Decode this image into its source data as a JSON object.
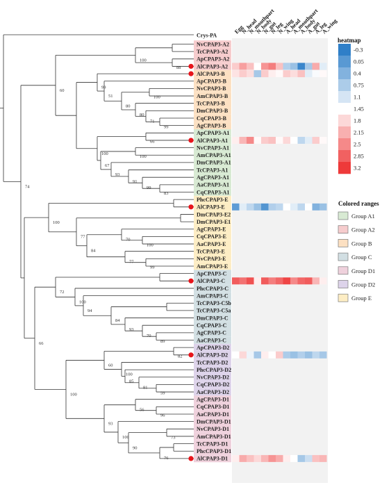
{
  "outgroup_label": "Crys-PA",
  "taxa": [
    {
      "label": "NvCPAP3-A2",
      "group": "A2",
      "dot": false
    },
    {
      "label": "TcCPAP3-A2",
      "group": "A2",
      "dot": false
    },
    {
      "label": "ApCPAP3-A2",
      "group": "A2",
      "dot": false
    },
    {
      "label": "AlCPAP3-A2",
      "group": "A2",
      "dot": true
    },
    {
      "label": "AlCPAP3-B",
      "group": "B",
      "dot": true
    },
    {
      "label": "ApCPAP3-B",
      "group": "B",
      "dot": false
    },
    {
      "label": "NvCPAP3-B",
      "group": "B",
      "dot": false
    },
    {
      "label": "AmCPAP3-B",
      "group": "B",
      "dot": false
    },
    {
      "label": "TcCPAP3-B",
      "group": "B",
      "dot": false
    },
    {
      "label": "DmCPAP3-B",
      "group": "B",
      "dot": false
    },
    {
      "label": "CqCPAP3-B",
      "group": "B",
      "dot": false
    },
    {
      "label": "AgCPAP3-B",
      "group": "B",
      "dot": false
    },
    {
      "label": "ApCPAP3-A1",
      "group": "A1",
      "dot": false
    },
    {
      "label": "AlCPAP3-A1",
      "group": "A1",
      "dot": true
    },
    {
      "label": "NvCPAP3-A1",
      "group": "A1",
      "dot": false
    },
    {
      "label": "AmCPAP3-A1",
      "group": "A1",
      "dot": false
    },
    {
      "label": "DmCPAP3-A1",
      "group": "A1",
      "dot": false
    },
    {
      "label": "TcCPAP3-A1",
      "group": "A1",
      "dot": false
    },
    {
      "label": "AgCPAP3-A1",
      "group": "A1",
      "dot": false
    },
    {
      "label": "AaCPAP3-A1",
      "group": "A1",
      "dot": false
    },
    {
      "label": "CqCPAP3-A1",
      "group": "A1",
      "dot": false
    },
    {
      "label": "PhcCPAP3-E",
      "group": "E",
      "dot": false
    },
    {
      "label": "AlCPAP3-E",
      "group": "E",
      "dot": true
    },
    {
      "label": "DmCPAP3-E2",
      "group": "E",
      "dot": false
    },
    {
      "label": "DmCPAP3-E1",
      "group": "E",
      "dot": false
    },
    {
      "label": "AgCPAP3-E",
      "group": "E",
      "dot": false
    },
    {
      "label": "CqCPAP3-E",
      "group": "E",
      "dot": false
    },
    {
      "label": "AaCPAP3-E",
      "group": "E",
      "dot": false
    },
    {
      "label": "TcCPAP3-E",
      "group": "E",
      "dot": false
    },
    {
      "label": "NvCPAP3-E",
      "group": "E",
      "dot": false
    },
    {
      "label": "AmCPAP3-E",
      "group": "E",
      "dot": false
    },
    {
      "label": "ApCPAP3-C",
      "group": "C",
      "dot": false
    },
    {
      "label": "AlCPAP3-C",
      "group": "C",
      "dot": true
    },
    {
      "label": "PhcCPAP3-C",
      "group": "C",
      "dot": false
    },
    {
      "label": "AmCPAP3-C",
      "group": "C",
      "dot": false
    },
    {
      "label": "TcCPAP3-C5b",
      "group": "C",
      "dot": false
    },
    {
      "label": "TcCPAP3-C5a",
      "group": "C",
      "dot": false
    },
    {
      "label": "DmCPAP3-C",
      "group": "C",
      "dot": false
    },
    {
      "label": "CqCPAP3-C",
      "group": "C",
      "dot": false
    },
    {
      "label": "AgCPAP3-C",
      "group": "C",
      "dot": false
    },
    {
      "label": "AaCPAP3-C",
      "group": "C",
      "dot": false
    },
    {
      "label": "ApCPAP3-D2",
      "group": "D2",
      "dot": false
    },
    {
      "label": "AlCPAP3-D2",
      "group": "D2",
      "dot": true
    },
    {
      "label": "TcCPAP3-D2",
      "group": "D2",
      "dot": false
    },
    {
      "label": "PhcCPAP3-D2",
      "group": "D2",
      "dot": false
    },
    {
      "label": "NvCPAP3-D2",
      "group": "D2",
      "dot": false
    },
    {
      "label": "CqCPAP3-D2",
      "group": "D2",
      "dot": false
    },
    {
      "label": "AaCPAP3-D2",
      "group": "D2",
      "dot": false
    },
    {
      "label": "AgCPAP3-D1",
      "group": "D1",
      "dot": false
    },
    {
      "label": "CqCPAP3-D1",
      "group": "D1",
      "dot": false
    },
    {
      "label": "AaCPAP3-D1",
      "group": "D1",
      "dot": false
    },
    {
      "label": "DmCPAP3-D1",
      "group": "D1",
      "dot": false
    },
    {
      "label": "NvCPAP3-D1",
      "group": "D1",
      "dot": false
    },
    {
      "label": "AmCPAP3-D1",
      "group": "D1",
      "dot": false
    },
    {
      "label": "TcCPAP3-D1",
      "group": "D1",
      "dot": false
    },
    {
      "label": "PhcCPAP3-D1",
      "group": "D1",
      "dot": false
    },
    {
      "label": "AlCPAP3-D1",
      "group": "D1",
      "dot": true
    }
  ],
  "bootstrap_values": [
    "100",
    "88",
    "60",
    "99",
    "51",
    "100",
    "80",
    "80",
    "71",
    "99",
    "66",
    "100",
    "100",
    "67",
    "93",
    "91",
    "99",
    "83",
    "100",
    "77",
    "84",
    "70",
    "100",
    "99",
    "77",
    "74",
    "72",
    "100",
    "94",
    "84",
    "93",
    "70",
    "89",
    "66",
    "82",
    "60",
    "100",
    "85",
    "81",
    "59",
    "100",
    "56",
    "96",
    "93",
    "100",
    "73",
    "90",
    "76"
  ],
  "heatmap": {
    "title": "heatmap",
    "columns": [
      "Egg",
      "N_head",
      "N_mouthpart",
      "N_body",
      "N_gut",
      "N_leg",
      "N_wing",
      "A_head",
      "A_mouthpart",
      "A_body",
      "A_gut",
      "A_leg",
      "A_wing"
    ],
    "rows": [
      {
        "taxon": "AlCPAP3-A2",
        "values": [
          1.9,
          2.3,
          2.0,
          1.45,
          2.4,
          2.6,
          2.0,
          0.8,
          0.6,
          -0.2,
          0.7,
          2.2,
          1.2
        ]
      },
      {
        "taxon": "AlCPAP3-B",
        "values": [
          1.7,
          1.9,
          1.75,
          0.7,
          1.9,
          1.6,
          1.5,
          1.9,
          1.75,
          2.0,
          1.2,
          1.4,
          1.5
        ]
      },
      {
        "taxon": "AlCPAP3-A1",
        "values": [
          1.6,
          2.1,
          2.5,
          1.5,
          1.9,
          2.0,
          1.5,
          1.8,
          1.45,
          0.9,
          1.2,
          1.9,
          1.5
        ]
      },
      {
        "taxon": "AlCPAP3-E",
        "values": [
          0.1,
          1.2,
          0.9,
          0.6,
          0.0,
          0.8,
          0.9,
          1.45,
          1.2,
          0.9,
          1.45,
          0.4,
          0.6
        ]
      },
      {
        "taxon": "AlCPAP3-C",
        "values": [
          2.9,
          2.7,
          3.0,
          1.6,
          2.9,
          2.6,
          2.8,
          3.1,
          2.5,
          2.8,
          2.9,
          2.1,
          1.6
        ]
      },
      {
        "taxon": "AlCPAP3-D2",
        "values": [
          1.45,
          1.8,
          1.3,
          0.7,
          1.6,
          1.45,
          1.9,
          0.75,
          0.6,
          0.8,
          0.6,
          0.9,
          0.7
        ]
      },
      {
        "taxon": "AlCPAP3-D1",
        "values": [
          1.6,
          2.2,
          2.0,
          1.8,
          2.1,
          2.4,
          2.2,
          1.6,
          1.45,
          0.7,
          1.0,
          2.0,
          2.1
        ]
      }
    ],
    "scale_ticks": [
      "-0.3",
      "0.05",
      "0.4",
      "0.75",
      "1.1",
      "1.45",
      "1.8",
      "2.15",
      "2.5",
      "2.85",
      "3.2"
    ],
    "low_color": "#2f7fc8",
    "mid_color": "#ffffff",
    "high_color": "#ee3a3a"
  },
  "legend": {
    "title": "Colored ranges",
    "items": [
      {
        "key": "A1",
        "label": "Group A1",
        "color": "#d8ead3"
      },
      {
        "key": "A2",
        "label": "Group A2",
        "color": "#f6cccd"
      },
      {
        "key": "B",
        "label": "Group B",
        "color": "#fce0c2"
      },
      {
        "key": "C",
        "label": "Group C",
        "color": "#d2dfe3"
      },
      {
        "key": "D1",
        "label": "Group D1",
        "color": "#efd1dc"
      },
      {
        "key": "D2",
        "label": "Group D2",
        "color": "#ddd3ea"
      },
      {
        "key": "E",
        "label": "Group E",
        "color": "#fdedc4"
      }
    ]
  },
  "dot_color": "#e8141b"
}
